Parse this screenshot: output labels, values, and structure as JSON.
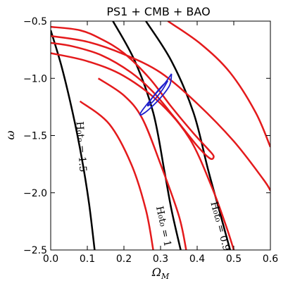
{
  "chart_data": {
    "type": "line",
    "title": "PS1 + CMB + BAO",
    "xlabel": "Ω",
    "xlabel_sub": "M",
    "ylabel": "ω",
    "xlim": [
      0.0,
      0.6
    ],
    "ylim": [
      -2.5,
      -0.5
    ],
    "xticks": [
      0.0,
      0.1,
      0.2,
      0.3,
      0.4,
      0.5,
      0.6
    ],
    "xtick_labels": [
      "0.0",
      "0.1",
      "0.2",
      "0.3",
      "0.4",
      "0.5",
      "0.6"
    ],
    "yticks": [
      -2.5,
      -2.0,
      -1.5,
      -1.0,
      -0.5
    ],
    "ytick_labels": [
      "−2.5",
      "−2.0",
      "−1.5",
      "−1.0",
      "−0.5"
    ],
    "grid": false,
    "colors": {
      "confidence": "#e41a1c",
      "combined": "#1f1fcc",
      "age": "#000000"
    },
    "series": [
      {
        "kind": "age-contour",
        "points": [
          [
            0.0,
            -0.58
          ],
          [
            0.03,
            -0.9
          ],
          [
            0.06,
            -1.3
          ],
          [
            0.085,
            -1.7
          ],
          [
            0.105,
            -2.1
          ],
          [
            0.12,
            -2.5
          ]
        ]
      },
      {
        "kind": "age-contour",
        "points": [
          [
            0.17,
            -0.5
          ],
          [
            0.23,
            -0.85
          ],
          [
            0.28,
            -1.3
          ],
          [
            0.31,
            -1.8
          ],
          [
            0.33,
            -2.15
          ],
          [
            0.355,
            -2.5
          ]
        ]
      },
      {
        "kind": "age-contour",
        "points": [
          [
            0.26,
            -0.5
          ],
          [
            0.33,
            -0.85
          ],
          [
            0.39,
            -1.3
          ],
          [
            0.43,
            -1.8
          ],
          [
            0.46,
            -2.15
          ],
          [
            0.49,
            -2.5
          ]
        ]
      },
      {
        "kind": "confidence-contour",
        "points": [
          [
            0.0,
            -0.63
          ],
          [
            0.1,
            -0.68
          ],
          [
            0.2,
            -0.79
          ],
          [
            0.3,
            -0.95
          ],
          [
            0.4,
            -1.22
          ],
          [
            0.5,
            -1.55
          ],
          [
            0.58,
            -1.88
          ],
          [
            0.6,
            -1.98
          ]
        ]
      },
      {
        "kind": "confidence-contour",
        "points": [
          [
            0.0,
            -0.78
          ],
          [
            0.1,
            -0.85
          ],
          [
            0.2,
            -0.98
          ],
          [
            0.3,
            -1.22
          ],
          [
            0.38,
            -1.53
          ],
          [
            0.44,
            -1.95
          ],
          [
            0.48,
            -2.3
          ],
          [
            0.5,
            -2.5
          ]
        ]
      },
      {
        "kind": "confidence-contour",
        "points": [
          [
            0.0,
            -0.55
          ],
          [
            0.08,
            -0.58
          ],
          [
            0.14,
            -0.66
          ],
          [
            0.2,
            -0.78
          ],
          [
            0.27,
            -1.0
          ],
          [
            0.33,
            -1.25
          ],
          [
            0.39,
            -1.48
          ],
          [
            0.43,
            -1.62
          ],
          [
            0.445,
            -1.68
          ],
          [
            0.435,
            -1.7
          ],
          [
            0.4,
            -1.59
          ],
          [
            0.34,
            -1.35
          ],
          [
            0.28,
            -1.12
          ],
          [
            0.22,
            -0.95
          ],
          [
            0.14,
            -0.8
          ],
          [
            0.06,
            -0.72
          ],
          [
            0.0,
            -0.69
          ]
        ]
      },
      {
        "kind": "confidence-contour",
        "points": [
          [
            0.13,
            -1.0
          ],
          [
            0.2,
            -1.15
          ],
          [
            0.25,
            -1.35
          ],
          [
            0.3,
            -1.75
          ],
          [
            0.35,
            -2.2
          ],
          [
            0.37,
            -2.5
          ]
        ]
      },
      {
        "kind": "confidence-contour",
        "points": [
          [
            0.08,
            -1.2
          ],
          [
            0.16,
            -1.4
          ],
          [
            0.22,
            -1.75
          ],
          [
            0.26,
            -2.15
          ],
          [
            0.28,
            -2.5
          ]
        ]
      },
      {
        "kind": "confidence-contour",
        "points": [
          [
            0.32,
            -0.5
          ],
          [
            0.41,
            -0.7
          ],
          [
            0.49,
            -0.95
          ],
          [
            0.56,
            -1.3
          ],
          [
            0.6,
            -1.6
          ]
        ]
      },
      {
        "kind": "combined-contour",
        "points": [
          [
            0.33,
            -0.96
          ],
          [
            0.31,
            -1.05
          ],
          [
            0.28,
            -1.16
          ],
          [
            0.25,
            -1.28
          ],
          [
            0.245,
            -1.32
          ],
          [
            0.265,
            -1.28
          ],
          [
            0.3,
            -1.17
          ],
          [
            0.325,
            -1.06
          ],
          [
            0.33,
            -0.96
          ]
        ]
      },
      {
        "kind": "combined-contour",
        "points": [
          [
            0.32,
            -1.02
          ],
          [
            0.3,
            -1.08
          ],
          [
            0.275,
            -1.18
          ],
          [
            0.265,
            -1.24
          ],
          [
            0.28,
            -1.2
          ],
          [
            0.305,
            -1.1
          ],
          [
            0.32,
            -1.02
          ]
        ]
      }
    ],
    "annotations": [
      {
        "text": "H₀t₀ = 1.5",
        "x": 0.075,
        "y": -1.6,
        "rotation": 86
      },
      {
        "text": "H₀t₀ = 1",
        "x": 0.3,
        "y": -2.3,
        "rotation": 78
      },
      {
        "text": "H₀t₀ = 0.9",
        "x": 0.455,
        "y": -2.3,
        "rotation": 75
      }
    ]
  }
}
